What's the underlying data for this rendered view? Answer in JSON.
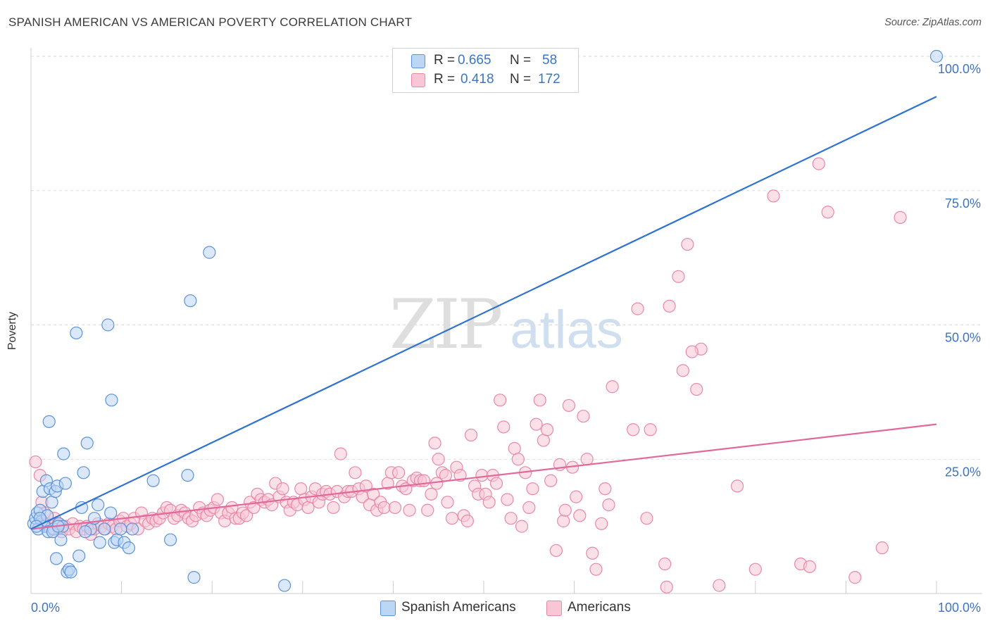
{
  "header": {
    "title": "SPANISH AMERICAN VS AMERICAN POVERTY CORRELATION CHART",
    "source": "Source: ZipAtlas.com"
  },
  "watermark": {
    "zip": "ZIP",
    "atlas": "atlas"
  },
  "legend": {
    "rows": [
      {
        "r_label": "R = ",
        "r_value": "0.665",
        "n_label": "N = ",
        "n_value": "58"
      },
      {
        "r_label": "R = ",
        "r_value": "0.418",
        "n_label": "N = ",
        "n_value": "172"
      }
    ]
  },
  "colors": {
    "blue_fill": "#bcd6f5",
    "blue_stroke": "#5c93d8",
    "blue_line": "#2f72cf",
    "pink_fill": "#f9c6d6",
    "pink_stroke": "#e889a8",
    "pink_line": "#e2689a",
    "axis_text": "#3f73c1",
    "grid": "#dcdcdc"
  },
  "chart_data": {
    "type": "scatter",
    "title": "SPANISH AMERICAN VS AMERICAN POVERTY CORRELATION CHART",
    "xlabel": "",
    "ylabel": "Poverty",
    "xlim": [
      0,
      100
    ],
    "ylim": [
      0,
      100
    ],
    "x_tick_labels": [
      "0.0%",
      "100.0%"
    ],
    "y_tick_labels": [
      "25.0%",
      "50.0%",
      "75.0%",
      "100.0%"
    ],
    "y_ticks": [
      25,
      50,
      75,
      100
    ],
    "legend": [
      "Spanish Americans",
      "Americans"
    ],
    "series": [
      {
        "name": "Spanish Americans",
        "r": 0.665,
        "n": 58,
        "trend": {
          "x": [
            0,
            100
          ],
          "y": [
            12.0,
            92.5
          ]
        },
        "points": [
          [
            0.3,
            13
          ],
          [
            0.5,
            14
          ],
          [
            0.7,
            15
          ],
          [
            1,
            15.5
          ],
          [
            1.2,
            13.5
          ],
          [
            1.5,
            12.5
          ],
          [
            1.8,
            14.5
          ],
          [
            0.8,
            12
          ],
          [
            1.3,
            19
          ],
          [
            1.7,
            21
          ],
          [
            1.9,
            11.5
          ],
          [
            2.1,
            19.5
          ],
          [
            2.3,
            17
          ],
          [
            2.5,
            12
          ],
          [
            2.7,
            19
          ],
          [
            2.9,
            20
          ],
          [
            3.1,
            13
          ],
          [
            3.3,
            10
          ],
          [
            3.5,
            12.5
          ],
          [
            3.6,
            26
          ],
          [
            3.8,
            20.5
          ],
          [
            2.8,
            6.5
          ],
          [
            4.0,
            4.0
          ],
          [
            4.2,
            4.5
          ],
          [
            4.4,
            4.0
          ],
          [
            5.0,
            48.5
          ],
          [
            5.3,
            7
          ],
          [
            5.6,
            16
          ],
          [
            5.8,
            22.5
          ],
          [
            6.2,
            28
          ],
          [
            6.6,
            12
          ],
          [
            7.0,
            14
          ],
          [
            7.4,
            16.5
          ],
          [
            7.6,
            9.5
          ],
          [
            8.1,
            12
          ],
          [
            8.5,
            50
          ],
          [
            8.8,
            15
          ],
          [
            8.9,
            36
          ],
          [
            9.2,
            9.5
          ],
          [
            9.5,
            10
          ],
          [
            9.9,
            12
          ],
          [
            10.3,
            9.5
          ],
          [
            10.8,
            8.5
          ],
          [
            11.2,
            12
          ],
          [
            13.5,
            21
          ],
          [
            15.4,
            10
          ],
          [
            17.3,
            22
          ],
          [
            17.6,
            54.5
          ],
          [
            18.0,
            3.0
          ],
          [
            19.7,
            63.5
          ],
          [
            28.0,
            1.5
          ],
          [
            100,
            100
          ],
          [
            2.0,
            32
          ],
          [
            1.0,
            14
          ],
          [
            2.4,
            11.5
          ],
          [
            3.0,
            12.5
          ],
          [
            6.0,
            11.5
          ],
          [
            0.6,
            12.5
          ]
        ]
      },
      {
        "name": "Americans",
        "r": 0.418,
        "n": 172,
        "trend": {
          "x": [
            0,
            100
          ],
          "y": [
            12.0,
            31.5
          ]
        },
        "points": [
          [
            0.5,
            24.5
          ],
          [
            1,
            22
          ],
          [
            1.2,
            17
          ],
          [
            1.5,
            15
          ],
          [
            1.8,
            13
          ],
          [
            2.2,
            12
          ],
          [
            2.6,
            14
          ],
          [
            3,
            13
          ],
          [
            3.4,
            11.5
          ],
          [
            3.8,
            12.5
          ],
          [
            4.2,
            12
          ],
          [
            4.6,
            13
          ],
          [
            5,
            11.5
          ],
          [
            5.4,
            12.5
          ],
          [
            5.8,
            12
          ],
          [
            6.2,
            12.5
          ],
          [
            6.6,
            11
          ],
          [
            7,
            12
          ],
          [
            7.4,
            13
          ],
          [
            7.8,
            12.5
          ],
          [
            8.2,
            12
          ],
          [
            8.6,
            13
          ],
          [
            9,
            12.5
          ],
          [
            9.4,
            12
          ],
          [
            9.8,
            13.5
          ],
          [
            10.2,
            14
          ],
          [
            10.6,
            12.5
          ],
          [
            11,
            13
          ],
          [
            11.4,
            14
          ],
          [
            11.8,
            12
          ],
          [
            12.2,
            15
          ],
          [
            12.6,
            13.5
          ],
          [
            13,
            13
          ],
          [
            13.4,
            14
          ],
          [
            13.8,
            13.5
          ],
          [
            14.2,
            14
          ],
          [
            14.6,
            15
          ],
          [
            15,
            16
          ],
          [
            15.4,
            15.5
          ],
          [
            15.8,
            14
          ],
          [
            16.2,
            14.5
          ],
          [
            16.6,
            15.5
          ],
          [
            17,
            15
          ],
          [
            17.4,
            14
          ],
          [
            17.8,
            13.5
          ],
          [
            18.2,
            14.5
          ],
          [
            18.6,
            16
          ],
          [
            19,
            15
          ],
          [
            19.4,
            14.5
          ],
          [
            19.8,
            15.5
          ],
          [
            20.2,
            16
          ],
          [
            20.6,
            17.5
          ],
          [
            21,
            15
          ],
          [
            21.4,
            13.5
          ],
          [
            21.8,
            15
          ],
          [
            22.2,
            16
          ],
          [
            22.6,
            14
          ],
          [
            23,
            14
          ],
          [
            23.4,
            15
          ],
          [
            23.8,
            14.5
          ],
          [
            24.2,
            17
          ],
          [
            24.6,
            16
          ],
          [
            25,
            18.5
          ],
          [
            25.4,
            17.5
          ],
          [
            25.8,
            17
          ],
          [
            26.2,
            17.5
          ],
          [
            26.6,
            16.5
          ],
          [
            27,
            20.5
          ],
          [
            27.4,
            18
          ],
          [
            27.8,
            19.5
          ],
          [
            28.2,
            17
          ],
          [
            28.6,
            15.5
          ],
          [
            29,
            17
          ],
          [
            29.4,
            16.5
          ],
          [
            29.8,
            19.5
          ],
          [
            30.2,
            17.5
          ],
          [
            30.6,
            16
          ],
          [
            31,
            18
          ],
          [
            31.4,
            19.5
          ],
          [
            31.8,
            17
          ],
          [
            32.2,
            18.5
          ],
          [
            32.6,
            19
          ],
          [
            33,
            18.5
          ],
          [
            33.4,
            16
          ],
          [
            33.8,
            19
          ],
          [
            34.2,
            26
          ],
          [
            34.6,
            18
          ],
          [
            35,
            19
          ],
          [
            35.4,
            19
          ],
          [
            35.8,
            22.5
          ],
          [
            36.2,
            19.5
          ],
          [
            36.6,
            18
          ],
          [
            37,
            20
          ],
          [
            37.4,
            16.5
          ],
          [
            37.8,
            18.5
          ],
          [
            38.2,
            15.5
          ],
          [
            38.6,
            17
          ],
          [
            39,
            16
          ],
          [
            39.4,
            20.5
          ],
          [
            39.8,
            22.5
          ],
          [
            40.2,
            16
          ],
          [
            40.6,
            22.5
          ],
          [
            41,
            20
          ],
          [
            41.4,
            19.5
          ],
          [
            41.8,
            15.5
          ],
          [
            42.2,
            21
          ],
          [
            42.6,
            21.5
          ],
          [
            43,
            21
          ],
          [
            43.4,
            21
          ],
          [
            43.8,
            15.5
          ],
          [
            44.2,
            18.5
          ],
          [
            44.6,
            28
          ],
          [
            44.8,
            20.5
          ],
          [
            45,
            25
          ],
          [
            45.4,
            22.5
          ],
          [
            45.8,
            22
          ],
          [
            46,
            17
          ],
          [
            46.5,
            14
          ],
          [
            47,
            23.5
          ],
          [
            47.4,
            22
          ],
          [
            47.8,
            14.5
          ],
          [
            48.2,
            13.5
          ],
          [
            48.6,
            29.5
          ],
          [
            49,
            20
          ],
          [
            49.4,
            18.5
          ],
          [
            49.8,
            22
          ],
          [
            50.2,
            18.5
          ],
          [
            50.6,
            17
          ],
          [
            51,
            22
          ],
          [
            51.4,
            20.5
          ],
          [
            51.8,
            36
          ],
          [
            52.2,
            31
          ],
          [
            52.6,
            17.5
          ],
          [
            53,
            14
          ],
          [
            53.4,
            27
          ],
          [
            53.8,
            25
          ],
          [
            54.2,
            12.5
          ],
          [
            54.6,
            22.5
          ],
          [
            55,
            16
          ],
          [
            55.4,
            19.5
          ],
          [
            55.8,
            31.5
          ],
          [
            56.2,
            36
          ],
          [
            56.6,
            28.5
          ],
          [
            57,
            30.5
          ],
          [
            57.4,
            21
          ],
          [
            58,
            8
          ],
          [
            58.4,
            24
          ],
          [
            58.8,
            13.5
          ],
          [
            59,
            15.5
          ],
          [
            59.4,
            35
          ],
          [
            59.8,
            23.5
          ],
          [
            60.2,
            18
          ],
          [
            60.6,
            14.5
          ],
          [
            61,
            33
          ],
          [
            61.4,
            25
          ],
          [
            62,
            7.5
          ],
          [
            62.4,
            4.5
          ],
          [
            63,
            13
          ],
          [
            63.4,
            19.5
          ],
          [
            63.8,
            16.5
          ],
          [
            64.2,
            38.5
          ],
          [
            68,
            14
          ],
          [
            68.4,
            30.5
          ],
          [
            70,
            5.5
          ],
          [
            72,
            41.5
          ],
          [
            74,
            45.5
          ],
          [
            76,
            1.5
          ],
          [
            78,
            20
          ],
          [
            80,
            4.5
          ],
          [
            82,
            74
          ],
          [
            85,
            5.5
          ],
          [
            86,
            5
          ],
          [
            87,
            80
          ],
          [
            88,
            71
          ],
          [
            91,
            3
          ],
          [
            94,
            8.5
          ],
          [
            96,
            70
          ],
          [
            70.2,
            1.2
          ],
          [
            72.5,
            65
          ],
          [
            70.5,
            53.5
          ],
          [
            71.5,
            59
          ],
          [
            73,
            45
          ],
          [
            73.5,
            38
          ],
          [
            67,
            53
          ],
          [
            66.5,
            30.5
          ]
        ]
      }
    ]
  },
  "bottom_legend": {
    "items": [
      "Spanish Americans",
      "Americans"
    ]
  }
}
